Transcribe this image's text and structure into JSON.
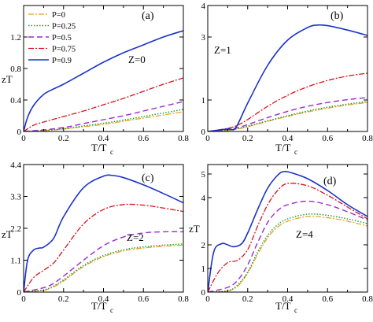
{
  "colors": {
    "P=0": "#e8a21c",
    "P=0.25": "#1f9a2e",
    "P=0.5": "#9a2ad1",
    "P=0.75": "#d8141c",
    "P=0.9": "#1a33c8"
  },
  "chart_data": [
    {
      "type": "line",
      "panel_label": "(a)",
      "annotation": "Z=0",
      "xlabel": "T/T",
      "xlabel_sub": "c",
      "ylabel": "zT",
      "xlim": [
        0,
        0.8
      ],
      "ylim": [
        0,
        1.6
      ],
      "xticks": [
        0,
        0.2,
        0.4,
        0.6,
        0.8
      ],
      "xtick_labels": [
        "0",
        "0.2",
        "0.4",
        "0.6",
        "0.8"
      ],
      "yticks": [
        0,
        0.4,
        0.8,
        1.2
      ],
      "ytick_labels": [
        "0",
        "0.4",
        "0.8",
        "1.2"
      ],
      "legend": {
        "placement": "top-left",
        "entries": [
          "P=0",
          "P=0.25",
          "P=0.5",
          "P=0.75",
          "P=0.9"
        ]
      },
      "series": [
        {
          "name": "P=0",
          "x": [
            0,
            0.1,
            0.2,
            0.3,
            0.4,
            0.5,
            0.6,
            0.7,
            0.8
          ],
          "y": [
            0,
            0.01,
            0.03,
            0.06,
            0.09,
            0.13,
            0.17,
            0.21,
            0.25
          ]
        },
        {
          "name": "P=0.25",
          "x": [
            0,
            0.1,
            0.2,
            0.3,
            0.4,
            0.5,
            0.6,
            0.7,
            0.8
          ],
          "y": [
            0,
            0.012,
            0.035,
            0.07,
            0.105,
            0.145,
            0.19,
            0.235,
            0.28
          ]
        },
        {
          "name": "P=0.5",
          "x": [
            0,
            0.1,
            0.2,
            0.3,
            0.4,
            0.5,
            0.6,
            0.7,
            0.8
          ],
          "y": [
            0,
            0.02,
            0.05,
            0.1,
            0.15,
            0.2,
            0.26,
            0.32,
            0.38
          ]
        },
        {
          "name": "P=0.75",
          "x": [
            0,
            0.05,
            0.1,
            0.2,
            0.3,
            0.4,
            0.5,
            0.6,
            0.7,
            0.8
          ],
          "y": [
            0,
            0.08,
            0.12,
            0.19,
            0.26,
            0.34,
            0.42,
            0.51,
            0.6,
            0.68
          ]
        },
        {
          "name": "P=0.9",
          "x": [
            0,
            0.02,
            0.05,
            0.1,
            0.15,
            0.2,
            0.3,
            0.4,
            0.5,
            0.6,
            0.7,
            0.8
          ],
          "y": [
            0,
            0.18,
            0.33,
            0.47,
            0.54,
            0.6,
            0.74,
            0.88,
            1.0,
            1.1,
            1.2,
            1.28
          ]
        }
      ]
    },
    {
      "type": "line",
      "panel_label": "(b)",
      "annotation": "Z=1",
      "xlabel": "T/T",
      "xlabel_sub": "c",
      "ylabel": "",
      "xlim": [
        0,
        0.8
      ],
      "ylim": [
        0,
        4
      ],
      "xticks": [
        0,
        0.2,
        0.4,
        0.6,
        0.8
      ],
      "xtick_labels": [
        "0",
        "0.2",
        "0.4",
        "0.6",
        "0.8"
      ],
      "yticks": [
        0,
        1,
        3,
        4
      ],
      "ytick_labels": [
        "0",
        "1",
        "3",
        "4"
      ],
      "series": [
        {
          "name": "P=0",
          "x": [
            0,
            0.1,
            0.15,
            0.2,
            0.3,
            0.4,
            0.5,
            0.6,
            0.7,
            0.8
          ],
          "y": [
            0,
            0.03,
            0.08,
            0.15,
            0.32,
            0.48,
            0.62,
            0.74,
            0.84,
            0.92
          ]
        },
        {
          "name": "P=0.25",
          "x": [
            0,
            0.1,
            0.15,
            0.2,
            0.3,
            0.4,
            0.5,
            0.6,
            0.7,
            0.8
          ],
          "y": [
            0,
            0.04,
            0.09,
            0.17,
            0.34,
            0.5,
            0.65,
            0.77,
            0.87,
            0.95
          ]
        },
        {
          "name": "P=0.5",
          "x": [
            0,
            0.1,
            0.15,
            0.2,
            0.3,
            0.4,
            0.5,
            0.6,
            0.7,
            0.8
          ],
          "y": [
            0,
            0.06,
            0.12,
            0.22,
            0.44,
            0.64,
            0.8,
            0.92,
            1.01,
            1.08
          ]
        },
        {
          "name": "P=0.75",
          "x": [
            0,
            0.1,
            0.15,
            0.2,
            0.3,
            0.4,
            0.5,
            0.6,
            0.7,
            0.8
          ],
          "y": [
            0,
            0.1,
            0.2,
            0.38,
            0.8,
            1.15,
            1.42,
            1.62,
            1.76,
            1.85
          ]
        },
        {
          "name": "P=0.9",
          "x": [
            0,
            0.1,
            0.14,
            0.2,
            0.3,
            0.4,
            0.5,
            0.55,
            0.6,
            0.7,
            0.8
          ],
          "y": [
            0,
            0.08,
            0.12,
            0.9,
            2.1,
            2.9,
            3.3,
            3.38,
            3.36,
            3.22,
            3.05
          ]
        }
      ]
    },
    {
      "type": "line",
      "panel_label": "(c)",
      "annotation": "Z=2",
      "xlabel": "T/T",
      "xlabel_sub": "c",
      "ylabel": "zT",
      "xlim": [
        0,
        0.8
      ],
      "ylim": [
        0,
        4.4
      ],
      "xticks": [
        0,
        0.2,
        0.4,
        0.6,
        0.8
      ],
      "xtick_labels": [
        "0",
        "0.2",
        "0.4",
        "0.6",
        "0.8"
      ],
      "yticks": [
        0,
        1.1,
        2.2,
        3.3,
        4.4
      ],
      "ytick_labels": [
        "0",
        "1.1",
        "2.2",
        "3.3",
        "4.4"
      ],
      "series": [
        {
          "name": "P=0",
          "x": [
            0,
            0.1,
            0.15,
            0.2,
            0.3,
            0.4,
            0.5,
            0.6,
            0.7,
            0.8
          ],
          "y": [
            0,
            0.06,
            0.18,
            0.38,
            0.88,
            1.22,
            1.42,
            1.52,
            1.58,
            1.62
          ]
        },
        {
          "name": "P=0.25",
          "x": [
            0,
            0.1,
            0.15,
            0.2,
            0.3,
            0.4,
            0.5,
            0.6,
            0.7,
            0.8
          ],
          "y": [
            0,
            0.08,
            0.21,
            0.42,
            0.92,
            1.26,
            1.46,
            1.56,
            1.62,
            1.66
          ]
        },
        {
          "name": "P=0.5",
          "x": [
            0,
            0.1,
            0.15,
            0.2,
            0.3,
            0.4,
            0.5,
            0.6,
            0.7,
            0.8
          ],
          "y": [
            0,
            0.15,
            0.3,
            0.55,
            1.1,
            1.6,
            1.9,
            2.04,
            2.08,
            2.08
          ]
        },
        {
          "name": "P=0.75",
          "x": [
            0,
            0.05,
            0.1,
            0.15,
            0.2,
            0.3,
            0.4,
            0.5,
            0.6,
            0.7,
            0.8
          ],
          "y": [
            0,
            0.5,
            0.75,
            1.0,
            1.45,
            2.35,
            2.85,
            3.02,
            3.0,
            2.9,
            2.78
          ]
        },
        {
          "name": "P=0.9",
          "x": [
            0,
            0.02,
            0.05,
            0.08,
            0.1,
            0.15,
            0.2,
            0.3,
            0.4,
            0.45,
            0.5,
            0.6,
            0.7,
            0.8
          ],
          "y": [
            0,
            1.1,
            1.45,
            1.52,
            1.55,
            1.85,
            2.6,
            3.6,
            4.0,
            4.02,
            3.95,
            3.7,
            3.4,
            3.08
          ]
        }
      ]
    },
    {
      "type": "line",
      "panel_label": "(d)",
      "annotation": "Z=4",
      "xlabel": "T/T",
      "xlabel_sub": "c",
      "ylabel": "zT",
      "xlim": [
        0,
        0.8
      ],
      "ylim": [
        0,
        5.4
      ],
      "xticks": [
        0,
        0.2,
        0.4,
        0.6,
        0.8
      ],
      "xtick_labels": [
        "0",
        "0.2",
        "0.4",
        "0.6",
        "0.8"
      ],
      "yticks": [
        0,
        1,
        2,
        4,
        5
      ],
      "ytick_labels": [
        "0",
        "1",
        "2",
        "4",
        "5"
      ],
      "series": [
        {
          "name": "P=0",
          "x": [
            0,
            0.1,
            0.15,
            0.2,
            0.25,
            0.3,
            0.35,
            0.4,
            0.5,
            0.6,
            0.7,
            0.8
          ],
          "y": [
            0,
            0.05,
            0.25,
            0.8,
            1.6,
            2.3,
            2.75,
            3.0,
            3.2,
            3.15,
            3.0,
            2.8
          ]
        },
        {
          "name": "P=0.25",
          "x": [
            0,
            0.1,
            0.15,
            0.2,
            0.25,
            0.3,
            0.35,
            0.4,
            0.5,
            0.6,
            0.7,
            0.8
          ],
          "y": [
            0,
            0.06,
            0.3,
            0.85,
            1.7,
            2.4,
            2.85,
            3.1,
            3.3,
            3.25,
            3.1,
            2.9
          ]
        },
        {
          "name": "P=0.5",
          "x": [
            0,
            0.1,
            0.15,
            0.2,
            0.25,
            0.3,
            0.35,
            0.4,
            0.5,
            0.6,
            0.7,
            0.8
          ],
          "y": [
            0,
            0.2,
            0.5,
            1.15,
            2.1,
            2.95,
            3.45,
            3.7,
            3.85,
            3.7,
            3.4,
            3.05
          ]
        },
        {
          "name": "P=0.75",
          "x": [
            0,
            0.05,
            0.1,
            0.15,
            0.2,
            0.25,
            0.3,
            0.35,
            0.4,
            0.5,
            0.6,
            0.7,
            0.8
          ],
          "y": [
            0,
            0.8,
            1.25,
            1.35,
            1.8,
            2.8,
            3.7,
            4.3,
            4.6,
            4.5,
            4.1,
            3.6,
            3.1
          ]
        },
        {
          "name": "P=0.9",
          "x": [
            0,
            0.03,
            0.07,
            0.1,
            0.13,
            0.17,
            0.2,
            0.25,
            0.3,
            0.35,
            0.38,
            0.42,
            0.5,
            0.6,
            0.7,
            0.8
          ],
          "y": [
            0,
            1.7,
            2.05,
            2.0,
            1.92,
            2.05,
            2.5,
            3.5,
            4.4,
            4.95,
            5.1,
            5.05,
            4.8,
            4.3,
            3.7,
            3.2
          ]
        }
      ]
    }
  ]
}
